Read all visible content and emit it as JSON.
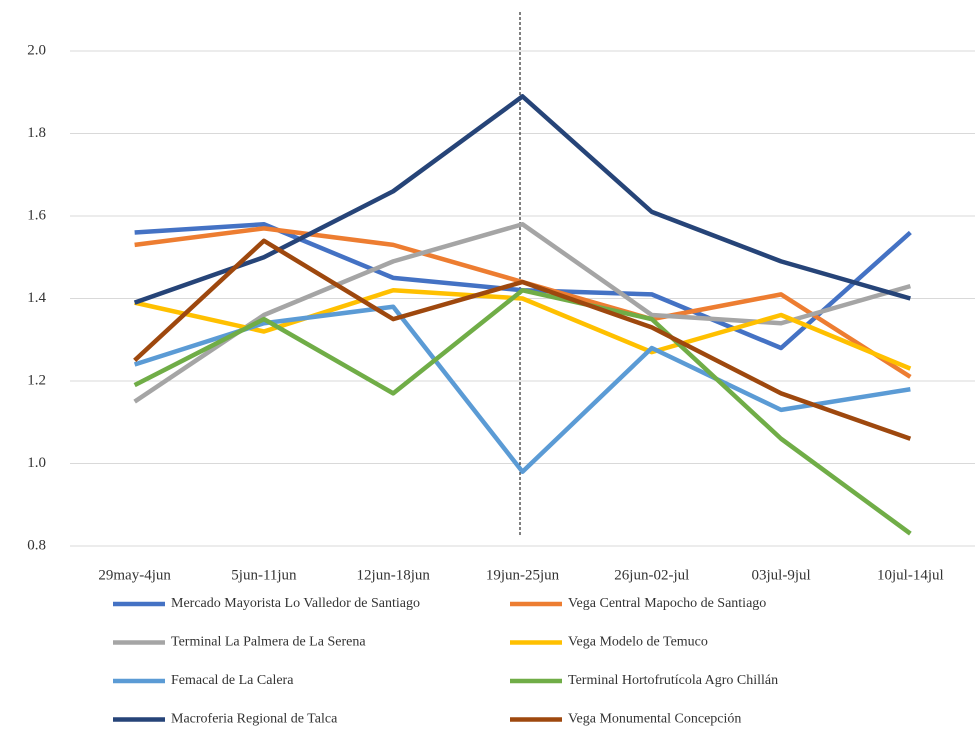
{
  "chart_data": {
    "type": "line",
    "categories": [
      "29may-4jun",
      "5jun-11jun",
      "12jun-18jun",
      "19jun-25jun",
      "26jun-02-jul",
      "03jul-9jul",
      "10jul-14jul"
    ],
    "ylim": [
      0.8,
      2.0
    ],
    "yticks": [
      0.8,
      {
        "value": 1.0,
        "label": "1.0"
      },
      1.2,
      1.4,
      1.6,
      1.8,
      {
        "value": 2.0,
        "label": "2.0"
      }
    ],
    "grid": true,
    "series": [
      {
        "name": "Mercado Mayorista Lo Valledor de Santiago",
        "color": "#4472c4",
        "values": [
          1.56,
          1.58,
          1.45,
          1.42,
          1.41,
          1.28,
          1.56
        ]
      },
      {
        "name": "Vega Central Mapocho de Santiago",
        "color": "#ed7d31",
        "values": [
          1.53,
          1.57,
          1.53,
          1.44,
          1.35,
          1.41,
          1.21
        ]
      },
      {
        "name": "Terminal La Palmera de La Serena",
        "color": "#a5a5a5",
        "values": [
          1.15,
          1.36,
          1.49,
          1.58,
          1.36,
          1.34,
          1.43
        ]
      },
      {
        "name": "Vega Modelo de Temuco",
        "color": "#ffc000",
        "values": [
          1.39,
          1.32,
          1.42,
          1.4,
          1.27,
          1.36,
          1.23
        ]
      },
      {
        "name": "Femacal de La Calera",
        "color": "#5b9bd5",
        "values": [
          1.24,
          1.34,
          1.38,
          0.98,
          1.28,
          1.13,
          1.18
        ]
      },
      {
        "name": "Terminal Hortofrutícola Agro Chillán",
        "color": "#70ad47",
        "values": [
          1.19,
          1.35,
          1.17,
          1.42,
          1.35,
          1.06,
          0.83
        ]
      },
      {
        "name": "Macroferia Regional de Talca",
        "color": "#264478",
        "values": [
          1.39,
          1.5,
          1.66,
          1.89,
          1.61,
          1.49,
          1.4
        ]
      },
      {
        "name": "Vega Monumental Concepción",
        "color": "#9e480e",
        "values": [
          1.25,
          1.54,
          1.35,
          1.44,
          1.33,
          1.17,
          1.06
        ]
      }
    ]
  }
}
